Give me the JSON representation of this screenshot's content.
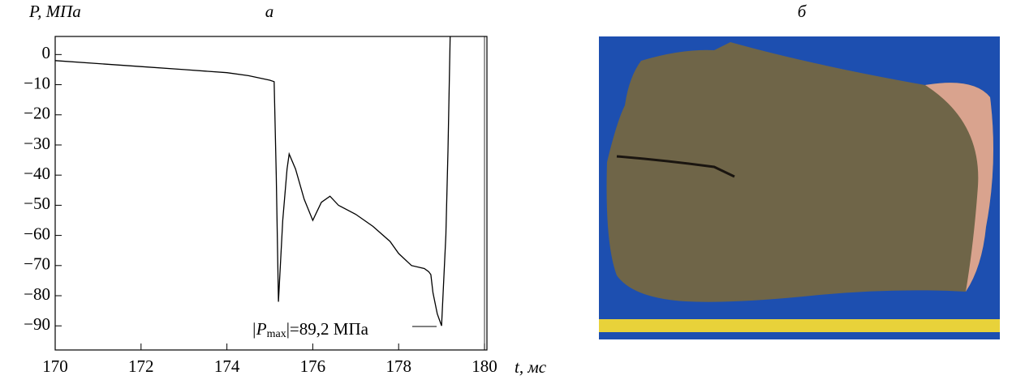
{
  "chart_data": {
    "type": "line",
    "title": "а",
    "photo_label": "б",
    "y_label": "P, МПа",
    "x_label": "t, мс",
    "annotation": [
      "|P",
      "max",
      "|=89,2 МПа"
    ],
    "color": "#000000",
    "x": [
      170,
      171,
      172,
      173,
      174,
      174.5,
      175,
      175.1,
      175.15,
      175.2,
      175.3,
      175.4,
      175.45,
      175.6,
      175.8,
      176,
      176.1,
      176.2,
      176.4,
      176.6,
      177,
      177.4,
      177.8,
      178,
      178.3,
      178.6,
      178.7,
      178.75,
      178.8,
      178.9,
      179,
      179.1,
      179.15,
      179.2
    ],
    "values": [
      -2,
      -3,
      -4,
      -5,
      -6,
      -7,
      -8.5,
      -9,
      -40,
      -82,
      -55,
      -38,
      -33,
      -38,
      -48,
      -55,
      -52,
      -49,
      -47,
      -50,
      -53,
      -57,
      -62,
      -66,
      -70,
      -71,
      -72,
      -73,
      -79,
      -86,
      -90,
      -60,
      -32,
      6
    ],
    "xlim": [
      170,
      180
    ],
    "xticks": [
      170,
      172,
      174,
      176,
      178,
      180
    ],
    "ylim": [
      -98,
      6
    ],
    "yticks": [
      0,
      {
        "value": -10,
        "label": "−10"
      },
      {
        "value": -20,
        "label": "−20"
      },
      {
        "value": -30,
        "label": "−30"
      },
      {
        "value": -40,
        "label": "−40"
      },
      {
        "value": -50,
        "label": "−50"
      },
      {
        "value": -60,
        "label": "−60"
      },
      {
        "value": -70,
        "label": "−70"
      },
      {
        "value": -80,
        "label": "−80"
      },
      {
        "value": -90,
        "label": "−90"
      }
    ]
  }
}
